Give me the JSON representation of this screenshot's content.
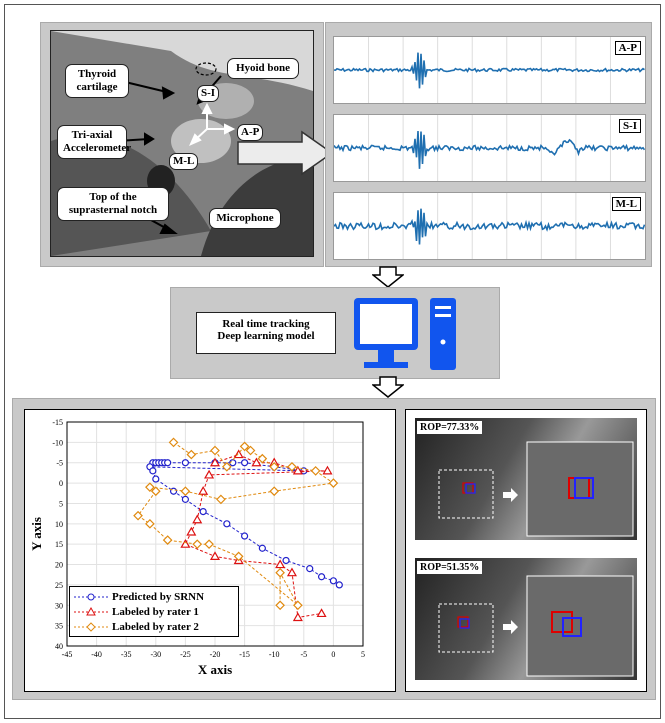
{
  "photo_labels": {
    "thyroid": "Thyroid cartilage",
    "hyoid": "Hyoid bone",
    "accel": "Tri-axial Accelerometer",
    "notch": "Top of the suprasternal notch",
    "mic": "Microphone",
    "si": "S-I",
    "ap": "A-P",
    "ml": "M-L"
  },
  "signals": [
    "A-P",
    "S-I",
    "M-L"
  ],
  "model_box": {
    "line1": "Real time tracking",
    "line2": "Deep learning model"
  },
  "rop": [
    "ROP=77.33%",
    "ROP=51.35%"
  ],
  "colors": {
    "predicted": "#2222cc",
    "rater1": "#dd1111",
    "rater2": "#e08a10",
    "signal": "#1f6fb0",
    "computer": "#1155ee"
  },
  "chart_data": {
    "type": "line",
    "xlabel": "X axis",
    "ylabel": "Y axis",
    "xlim": [
      -45,
      5
    ],
    "ylim": [
      -15,
      40
    ],
    "y_inverted": true,
    "xticks": [
      -45,
      -40,
      -35,
      -30,
      -25,
      -20,
      -15,
      -10,
      -5,
      0,
      5
    ],
    "yticks": [
      -15,
      -10,
      -5,
      0,
      5,
      10,
      15,
      20,
      25,
      30,
      35,
      40
    ],
    "grid": true,
    "legend_position": "bottom-left",
    "series": [
      {
        "name": "Predicted by SRNN",
        "marker": "circle",
        "x": [
          -30.5,
          -30,
          -29.5,
          -29,
          -28.5,
          -28,
          -25,
          -20,
          -17,
          -15,
          -10,
          -5,
          -31,
          -30.5,
          -30,
          -27,
          -25,
          -22,
          -18,
          -15,
          -12,
          -8,
          -4,
          -2,
          0,
          1
        ],
        "y": [
          -5,
          -5,
          -5,
          -5,
          -5,
          -5,
          -5,
          -5,
          -5,
          -5,
          -4,
          -3,
          -4,
          -3,
          -1,
          2,
          4,
          7,
          10,
          13,
          16,
          19,
          21,
          23,
          24,
          25
        ]
      },
      {
        "name": "Labeled by rater 1",
        "marker": "triangle",
        "x": [
          -20,
          -16,
          -13,
          -10,
          -6,
          -1,
          -21,
          -22,
          -23,
          -24,
          -25,
          -20,
          -16,
          -9,
          -7,
          -6,
          -2
        ],
        "y": [
          -5,
          -7,
          -5,
          -5,
          -3,
          -3,
          -2,
          2,
          9,
          12,
          15,
          18,
          19,
          20,
          22,
          33,
          32
        ]
      },
      {
        "name": "Labeled by rater 2",
        "marker": "diamond",
        "x": [
          -27,
          -24,
          -20,
          -18,
          -15,
          -14,
          -12,
          -10,
          -7,
          -3,
          0,
          -10,
          -19,
          -25,
          -31,
          -30,
          -33,
          -31,
          -28,
          -23,
          -21,
          -16,
          -6,
          -9,
          -9
        ],
        "y": [
          -10,
          -7,
          -8,
          -4,
          -9,
          -8,
          -6,
          -4,
          -4,
          -3,
          0,
          2,
          4,
          2,
          1,
          2,
          8,
          10,
          14,
          15,
          15,
          18,
          30,
          22,
          30
        ]
      }
    ]
  }
}
